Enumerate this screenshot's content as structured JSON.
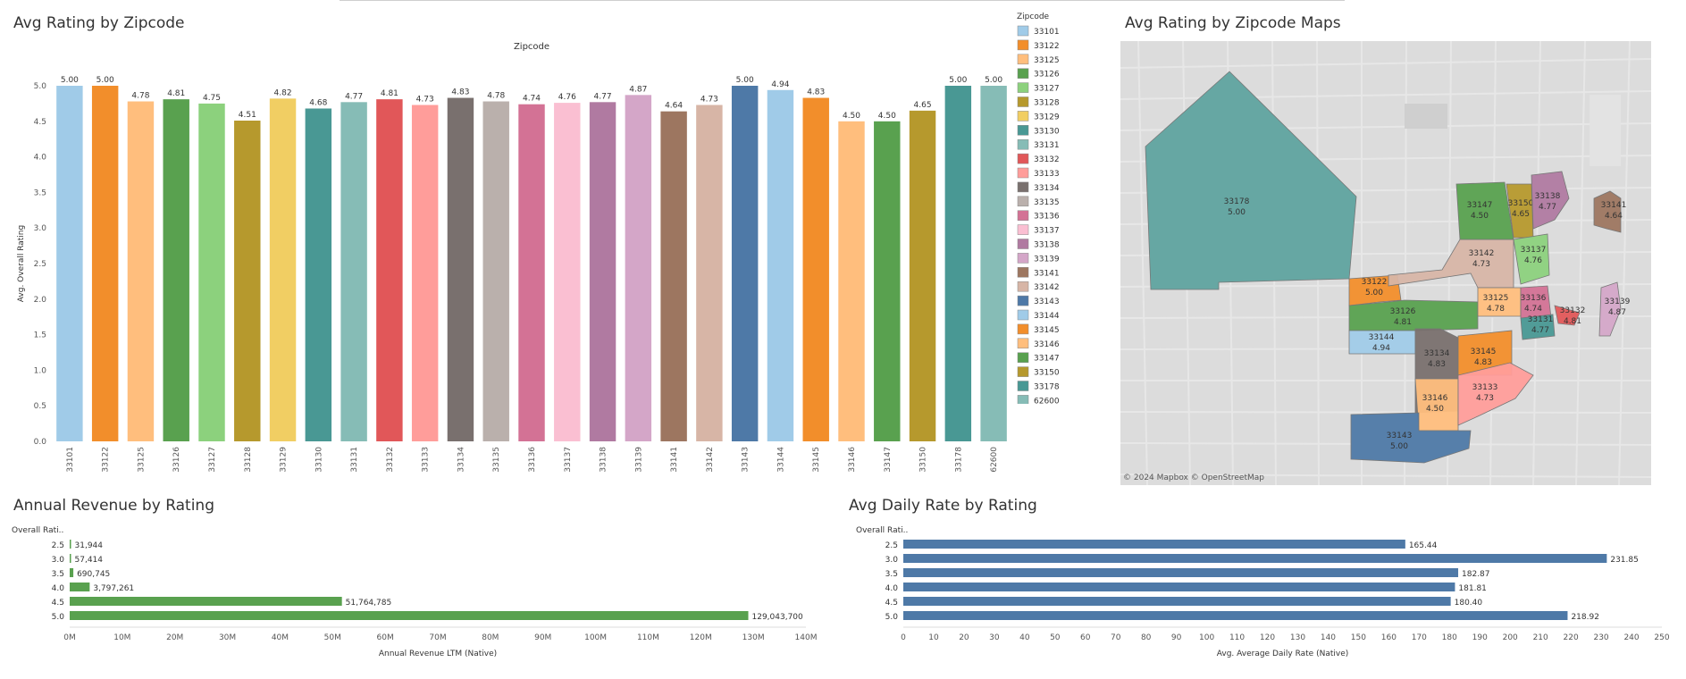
{
  "colors": {
    "palette": [
      "#a0cbe8",
      "#f28e2b",
      "#ffbe7d",
      "#59a14f",
      "#8cd17d",
      "#b6992d",
      "#f1ce63",
      "#499894",
      "#86bcb6",
      "#e15759",
      "#ff9d9a",
      "#79706e",
      "#bab0ac",
      "#d37295",
      "#fabfd2",
      "#b07aa1",
      "#d4a6c8",
      "#9d7660",
      "#d7b5a6",
      "#4e79a7",
      "#a0cbe8",
      "#f28e2b",
      "#ffbe7d",
      "#59a14f",
      "#b6992d",
      "#499894",
      "#86bcb6"
    ],
    "revenue_bar": "#59a14f",
    "adr_bar": "#4e79a7"
  },
  "bar_chart_title": "Avg Rating by Zipcode",
  "map_title": "Avg Rating by Zipcode Maps",
  "revenue_title": "Annual Revenue by Rating",
  "adr_title": "Avg Daily Rate by Rating",
  "map_attribution": "© 2024 Mapbox  © OpenStreetMap",
  "legend_title": "Zipcode",
  "chart_data": [
    {
      "type": "bar",
      "title": "Avg Rating by Zipcode",
      "header": "Zipcode",
      "ylabel": "Avg. Overall Rating",
      "ylim": [
        0,
        5
      ],
      "yticks": [
        "0.0",
        "0.5",
        "1.0",
        "1.5",
        "2.0",
        "2.5",
        "3.0",
        "3.5",
        "4.0",
        "4.5",
        "5.0"
      ],
      "categories": [
        "33101",
        "33122",
        "33125",
        "33126",
        "33127",
        "33128",
        "33129",
        "33130",
        "33131",
        "33132",
        "33133",
        "33134",
        "33135",
        "33136",
        "33137",
        "33138",
        "33139",
        "33141",
        "33142",
        "33143",
        "33144",
        "33145",
        "33146",
        "33147",
        "33150",
        "33178",
        "62600"
      ],
      "values": [
        5.0,
        5.0,
        4.78,
        4.81,
        4.75,
        4.51,
        4.82,
        4.68,
        4.77,
        4.81,
        4.73,
        4.83,
        4.78,
        4.74,
        4.76,
        4.77,
        4.87,
        4.64,
        4.73,
        5.0,
        4.94,
        4.83,
        4.5,
        4.5,
        4.65,
        5.0,
        5.0
      ],
      "labels": [
        "5.00",
        "5.00",
        "4.78",
        "4.81",
        "4.75",
        "4.51",
        "4.82",
        "4.68",
        "4.77",
        "4.81",
        "4.73",
        "4.83",
        "4.78",
        "4.74",
        "4.76",
        "4.77",
        "4.87",
        "4.64",
        "4.73",
        "5.00",
        "4.94",
        "4.83",
        "4.50",
        "4.50",
        "4.65",
        "5.00",
        "5.00"
      ]
    },
    {
      "type": "bar",
      "orientation": "horizontal",
      "title": "Annual Revenue by Rating",
      "row_header": "Overall Rati..",
      "xlabel": "Annual Revenue LTM (Native)",
      "xlim": [
        0,
        140000000
      ],
      "xticks": [
        "0M",
        "10M",
        "20M",
        "30M",
        "40M",
        "50M",
        "60M",
        "70M",
        "80M",
        "90M",
        "100M",
        "110M",
        "120M",
        "130M",
        "140M"
      ],
      "categories": [
        "2.5",
        "3.0",
        "3.5",
        "4.0",
        "4.5",
        "5.0"
      ],
      "values": [
        31944,
        57414,
        690745,
        3797261,
        51764785,
        129043700
      ],
      "labels": [
        "31,944",
        "57,414",
        "690,745",
        "3,797,261",
        "51,764,785",
        "129,043,700"
      ]
    },
    {
      "type": "bar",
      "orientation": "horizontal",
      "title": "Avg Daily Rate by Rating",
      "row_header": "Overall Rati..",
      "xlabel": "Avg. Average Daily Rate (Native)",
      "xlim": [
        0,
        250
      ],
      "xticks": [
        "0",
        "10",
        "20",
        "30",
        "40",
        "50",
        "60",
        "70",
        "80",
        "90",
        "100",
        "110",
        "120",
        "130",
        "140",
        "150",
        "160",
        "170",
        "180",
        "190",
        "200",
        "210",
        "220",
        "230",
        "240",
        "250"
      ],
      "categories": [
        "2.5",
        "3.0",
        "3.5",
        "4.0",
        "4.5",
        "5.0"
      ],
      "values": [
        165.44,
        231.85,
        182.87,
        181.81,
        180.4,
        218.92
      ],
      "labels": [
        "165.44",
        "231.85",
        "182.87",
        "181.81",
        "180.40",
        "218.92"
      ]
    }
  ],
  "map_regions": [
    {
      "zip": "33178",
      "value": "5.00"
    },
    {
      "zip": "33122",
      "value": "5.00"
    },
    {
      "zip": "33126",
      "value": "4.81"
    },
    {
      "zip": "33144",
      "value": "4.94"
    },
    {
      "zip": "33134",
      "value": "4.83"
    },
    {
      "zip": "33145",
      "value": "4.83"
    },
    {
      "zip": "33146",
      "value": "4.50"
    },
    {
      "zip": "33133",
      "value": "4.73"
    },
    {
      "zip": "33143",
      "value": "5.00"
    },
    {
      "zip": "33142",
      "value": "4.73"
    },
    {
      "zip": "33125",
      "value": "4.78"
    },
    {
      "zip": "33147",
      "value": "4.50"
    },
    {
      "zip": "33150",
      "value": "4.65"
    },
    {
      "zip": "33138",
      "value": "4.77"
    },
    {
      "zip": "33137",
      "value": "4.76"
    },
    {
      "zip": "33136",
      "value": "4.74"
    },
    {
      "zip": "33131",
      "value": "4.77"
    },
    {
      "zip": "33132",
      "value": "4.81"
    },
    {
      "zip": "33139",
      "value": "4.87"
    },
    {
      "zip": "33141",
      "value": "4.64"
    }
  ]
}
